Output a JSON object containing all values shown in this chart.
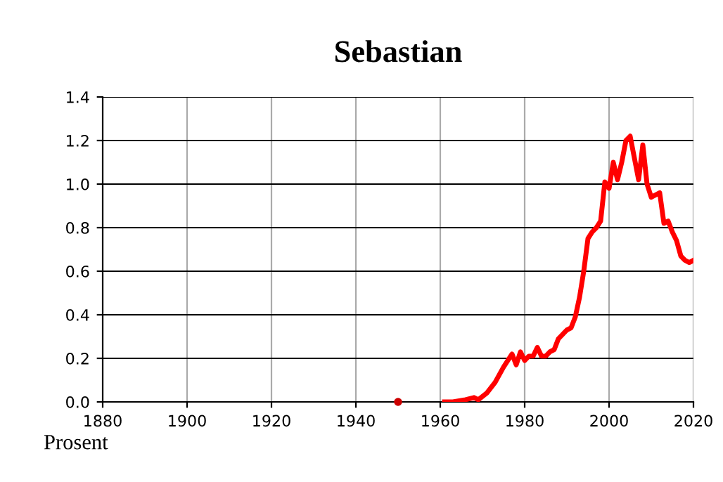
{
  "chart_data": {
    "type": "line",
    "title": "Sebastian",
    "ylabel": "Prosent",
    "series": [
      {
        "color": "#ff0000",
        "x": [
          1961,
          1963,
          1966,
          1968,
          1969,
          1971,
          1973,
          1975,
          1976,
          1977,
          1978,
          1979,
          1980,
          1981,
          1982,
          1983,
          1984,
          1985,
          1986,
          1987,
          1988,
          1989,
          1990,
          1991,
          1992,
          1993,
          1994,
          1995,
          1996,
          1997,
          1998,
          1999,
          2000,
          2001,
          2002,
          2003,
          2004,
          2005,
          2006,
          2007,
          2008,
          2009,
          2010,
          2011,
          2012,
          2013,
          2014,
          2015,
          2016,
          2017,
          2018,
          2019,
          2020
        ],
        "values": [
          0.0,
          0.0,
          0.01,
          0.02,
          0.01,
          0.04,
          0.09,
          0.16,
          0.19,
          0.22,
          0.17,
          0.23,
          0.19,
          0.21,
          0.21,
          0.25,
          0.21,
          0.21,
          0.23,
          0.24,
          0.29,
          0.31,
          0.33,
          0.34,
          0.39,
          0.48,
          0.6,
          0.75,
          0.78,
          0.8,
          0.83,
          1.01,
          0.98,
          1.1,
          1.02,
          1.1,
          1.2,
          1.22,
          1.12,
          1.02,
          1.18,
          1.0,
          0.94,
          0.95,
          0.96,
          0.82,
          0.83,
          0.78,
          0.74,
          0.67,
          0.65,
          0.64,
          0.65
        ]
      },
      {
        "type": "scatter",
        "color": "#cc0000",
        "x": [
          1950
        ],
        "values": [
          0.0
        ],
        "marker": "circle"
      }
    ],
    "xlim": [
      1880,
      2020
    ],
    "xticks": [
      1880,
      1900,
      1920,
      1940,
      1960,
      1980,
      2000,
      2020
    ],
    "ylim": [
      0,
      1.4
    ],
    "yticks": [
      {
        "value": 0,
        "label": "0.0"
      },
      {
        "value": 0.2,
        "label": "0.2"
      },
      {
        "value": 0.4,
        "label": "0.4"
      },
      {
        "value": 0.6,
        "label": "0.6"
      },
      {
        "value": 0.8,
        "label": "0.8"
      },
      {
        "value": 1.0,
        "label": "1.0"
      },
      {
        "value": 1.2,
        "label": "1.2"
      },
      {
        "value": 1.4,
        "label": "1.4"
      }
    ],
    "grid": true
  }
}
